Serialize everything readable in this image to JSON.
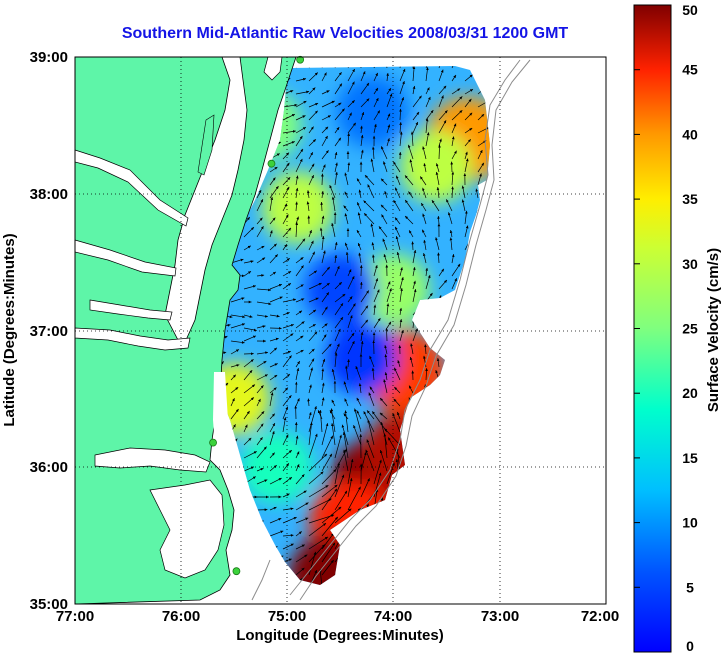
{
  "title": "Southern Mid-Atlantic Raw Velocities 2008/03/31 1200 GMT",
  "x_axis": {
    "label": "Longitude (Degrees:Minutes)",
    "ticks": [
      "77:00",
      "76:00",
      "75:00",
      "74:00",
      "73:00",
      "72:00"
    ]
  },
  "y_axis": {
    "label": "Latitude (Degrees:Minutes)",
    "ticks": [
      "39:00",
      "38:00",
      "37:00",
      "36:00",
      "35:00"
    ]
  },
  "colorbar": {
    "label": "Surface Velocity (cm/s)",
    "ticks": [
      "50",
      "45",
      "40",
      "35",
      "30",
      "25",
      "20",
      "15",
      "10",
      "5",
      "0"
    ],
    "range": [
      0,
      50
    ],
    "colormap": "jet"
  },
  "colors": {
    "land": "#5ef5a8",
    "coastline": "#000000",
    "title": "#1414e6",
    "station": "#3cd23c",
    "isobath": "#8c8c8c"
  },
  "chart_data": {
    "type": "heatmap",
    "map_extent": {
      "lon": [
        -77,
        -72
      ],
      "lat": [
        35,
        39
      ]
    },
    "grid": "dotted",
    "stations": [
      {
        "lon": -74.88,
        "lat": 38.98
      },
      {
        "lon": -75.15,
        "lat": 38.22
      },
      {
        "lon": -75.7,
        "lat": 36.18
      },
      {
        "lon": -75.48,
        "lat": 35.24
      }
    ],
    "speed_field": [
      {
        "lon": -74.2,
        "lat": 35.9,
        "speed": 50
      },
      {
        "lon": -73.9,
        "lat": 36.1,
        "speed": 48
      },
      {
        "lon": -74.4,
        "lat": 35.6,
        "speed": 45
      },
      {
        "lon": -74.6,
        "lat": 35.2,
        "speed": 50
      },
      {
        "lon": -73.9,
        "lat": 36.7,
        "speed": 44
      },
      {
        "lon": -73.3,
        "lat": 38.4,
        "speed": 40
      },
      {
        "lon": -73.6,
        "lat": 38.2,
        "speed": 30
      },
      {
        "lon": -74.9,
        "lat": 37.9,
        "speed": 30
      },
      {
        "lon": -75.2,
        "lat": 38.5,
        "speed": 25
      },
      {
        "lon": -74.0,
        "lat": 37.3,
        "speed": 27
      },
      {
        "lon": -75.5,
        "lat": 36.5,
        "speed": 33
      },
      {
        "lon": -75.1,
        "lat": 36.0,
        "speed": 20
      },
      {
        "lon": -74.2,
        "lat": 38.6,
        "speed": 8
      },
      {
        "lon": -74.5,
        "lat": 37.3,
        "speed": 5
      },
      {
        "lon": -74.3,
        "lat": 36.8,
        "speed": 4
      }
    ]
  }
}
